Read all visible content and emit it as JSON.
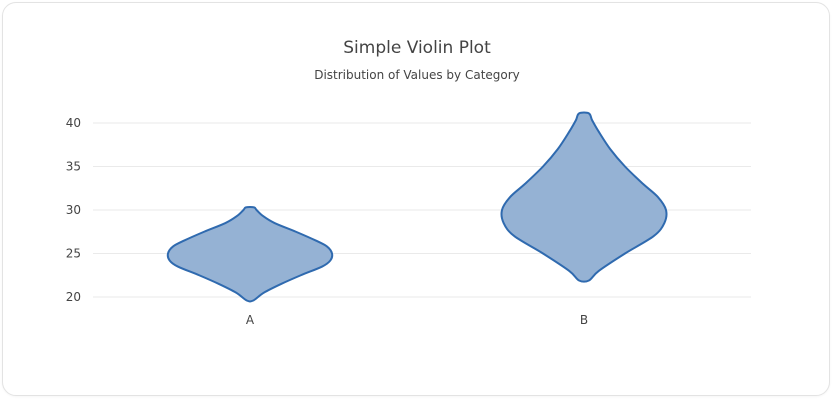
{
  "chart_data": {
    "type": "violin",
    "title": "Simple Violin Plot",
    "subtitle": "Distribution of Values by Category",
    "xlabel": "",
    "ylabel": "",
    "categories": [
      "A",
      "B"
    ],
    "y_ticks": [
      20,
      25,
      30,
      35,
      40
    ],
    "ylim": [
      19,
      41.5
    ],
    "grid": true,
    "violins": [
      {
        "category": "A",
        "min": 19.6,
        "max": 30.3,
        "profile": [
          {
            "y": 19.6,
            "w": 0.04
          },
          {
            "y": 20.5,
            "w": 0.17
          },
          {
            "y": 21.5,
            "w": 0.38
          },
          {
            "y": 22.5,
            "w": 0.62
          },
          {
            "y": 23.5,
            "w": 0.88
          },
          {
            "y": 24.2,
            "w": 0.98
          },
          {
            "y": 25.0,
            "w": 1.0
          },
          {
            "y": 25.8,
            "w": 0.94
          },
          {
            "y": 26.5,
            "w": 0.8
          },
          {
            "y": 27.5,
            "w": 0.56
          },
          {
            "y": 28.5,
            "w": 0.3
          },
          {
            "y": 29.3,
            "w": 0.16
          },
          {
            "y": 30.0,
            "w": 0.08
          },
          {
            "y": 30.3,
            "w": 0.05
          }
        ]
      },
      {
        "category": "B",
        "min": 21.9,
        "max": 41.1,
        "profile": [
          {
            "y": 21.9,
            "w": 0.06
          },
          {
            "y": 23.0,
            "w": 0.18
          },
          {
            "y": 25.0,
            "w": 0.5
          },
          {
            "y": 27.0,
            "w": 0.85
          },
          {
            "y": 28.5,
            "w": 0.98
          },
          {
            "y": 30.0,
            "w": 1.0
          },
          {
            "y": 31.5,
            "w": 0.9
          },
          {
            "y": 33.0,
            "w": 0.72
          },
          {
            "y": 35.0,
            "w": 0.5
          },
          {
            "y": 37.0,
            "w": 0.32
          },
          {
            "y": 39.0,
            "w": 0.18
          },
          {
            "y": 40.3,
            "w": 0.1
          },
          {
            "y": 41.1,
            "w": 0.06
          }
        ]
      }
    ],
    "colors": {
      "fill": "#95b2d4",
      "stroke": "#2f6aaf"
    }
  }
}
